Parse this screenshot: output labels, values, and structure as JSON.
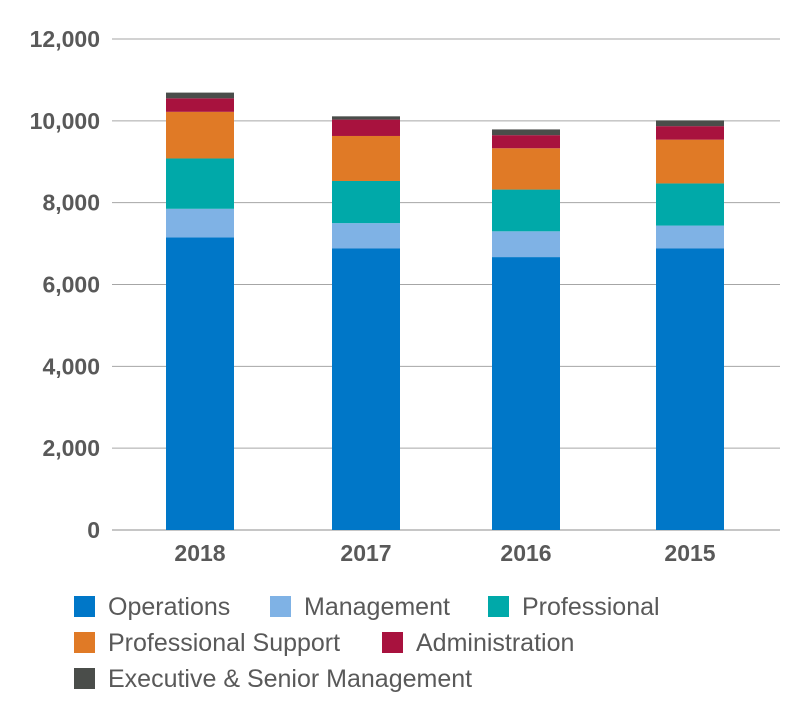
{
  "chart_data": {
    "type": "bar",
    "stacked": true,
    "categories": [
      "2018",
      "2017",
      "2016",
      "2015"
    ],
    "ylim": [
      0,
      12000
    ],
    "y_ticks": [
      0,
      2000,
      4000,
      6000,
      8000,
      10000,
      12000
    ],
    "y_tick_labels": [
      "0",
      "2,000",
      "4,000",
      "6,000",
      "8,000",
      "10,000",
      "12,000"
    ],
    "grid": true,
    "legend_position": "bottom",
    "series": [
      {
        "name": "Operations",
        "color": "#0077c8",
        "values": [
          7150,
          6880,
          6670,
          6880
        ]
      },
      {
        "name": "Management",
        "color": "#7fb2e5",
        "values": [
          700,
          620,
          630,
          560
        ]
      },
      {
        "name": "Professional",
        "color": "#00a9a9",
        "values": [
          1230,
          1030,
          1020,
          1030
        ]
      },
      {
        "name": "Professional Support",
        "color": "#e07a26",
        "values": [
          1140,
          1100,
          1010,
          1070
        ]
      },
      {
        "name": "Administration",
        "color": "#a8123e",
        "values": [
          330,
          400,
          320,
          330
        ]
      },
      {
        "name": "Executive & Senior Management",
        "color": "#4a4d4a",
        "values": [
          140,
          80,
          140,
          140
        ]
      }
    ]
  }
}
